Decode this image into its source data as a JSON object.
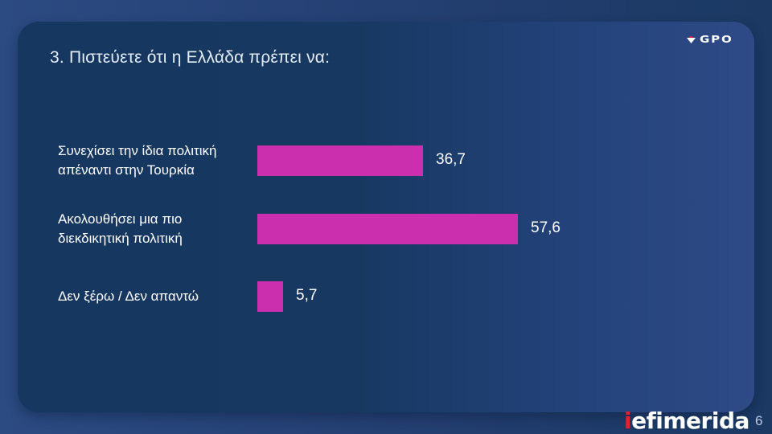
{
  "slide": {
    "title": "3. Πιστεύετε ότι η Ελλάδα πρέπει να:",
    "logo_text": "GPO",
    "brand_prefix": "i",
    "brand_rest": "efimerida",
    "page_number": "6",
    "colors": {
      "bar": "#cc2fae",
      "card_left": "#163760",
      "card_right": "#2f4a86",
      "brand_red": "#e42229"
    }
  },
  "rows": [
    {
      "label_line1": "Συνεχίσει την ίδια πολιτική",
      "label_line2": "απέναντι στην Τουρκία",
      "value_label": "36,7",
      "value": 36.7
    },
    {
      "label_line1": "Ακολουθήσει μια πιο",
      "label_line2": "διεκδικητική πολιτική",
      "value_label": "57,6",
      "value": 57.6
    },
    {
      "label_line1": "Δεν ξέρω / Δεν απαντώ",
      "label_line2": "",
      "value_label": "5,7",
      "value": 5.7
    }
  ],
  "chart_data": {
    "type": "bar",
    "orientation": "horizontal",
    "title": "3. Πιστεύετε ότι η Ελλάδα πρέπει να:",
    "categories": [
      "Συνεχίσει την ίδια πολιτική απέναντι στην Τουρκία",
      "Ακολουθήσει μια πιο διεκδικητική πολιτική",
      "Δεν ξέρω / Δεν απαντώ"
    ],
    "values": [
      36.7,
      57.6,
      5.7
    ],
    "value_labels": [
      "36,7",
      "57,6",
      "5,7"
    ],
    "xlabel": "",
    "ylabel": "",
    "grid": false,
    "legend": null,
    "bar_color": "#cc2fae"
  }
}
